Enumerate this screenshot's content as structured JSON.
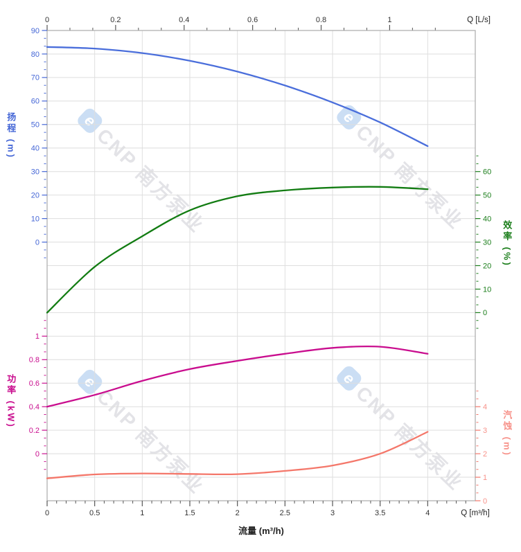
{
  "watermarks": {
    "text": "CNP 南方泵业",
    "logo_glyph": "e"
  },
  "chart_data": {
    "type": "line",
    "description": "pump performance curves",
    "x_label_bottom": "流量 (m³/h)",
    "x_m3h": [
      0,
      0.5,
      1,
      1.5,
      2,
      2.5,
      3,
      3.5,
      4
    ],
    "series": [
      {
        "name": "扬程",
        "unit": "m",
        "axis": "head",
        "color": "#4a6edb",
        "values": [
          83,
          82.3,
          80.4,
          77.1,
          72.5,
          66.6,
          59.4,
          50.9,
          40.8
        ]
      },
      {
        "name": "效率",
        "unit": "%",
        "axis": "efficiency",
        "color": "#127c12",
        "values": [
          0,
          19.5,
          32.5,
          43.5,
          49.5,
          52,
          53.2,
          53.5,
          52.5
        ]
      },
      {
        "name": "功率",
        "unit": "kW",
        "axis": "power",
        "color": "#c90d8e",
        "values": [
          0.4,
          0.5,
          0.62,
          0.72,
          0.79,
          0.85,
          0.9,
          0.91,
          0.85
        ]
      },
      {
        "name": "汽蚀",
        "unit": "m",
        "axis": "npsh",
        "color": "#f4776a",
        "values": [
          0.95,
          1.12,
          1.16,
          1.14,
          1.13,
          1.27,
          1.5,
          2,
          2.93
        ]
      }
    ],
    "axes": {
      "top": {
        "label": "Q [L/s]",
        "tick_labels": [
          "0",
          "0.2",
          "0.4",
          "0.6",
          "0.8",
          "1"
        ],
        "conversion": "1 L/s = 3.6 m³/h"
      },
      "bottom": {
        "label": "Q [m³/h]",
        "title": "流量 (m³/h)",
        "tick_labels": [
          "0",
          "0.5",
          "1",
          "1.5",
          "2",
          "2.5",
          "3",
          "3.5",
          "4"
        ],
        "range_m3h": [
          0,
          4.5
        ]
      },
      "head": {
        "title": "扬程 (m)",
        "color": "#4466d6",
        "tick_labels": [
          "90",
          "80",
          "70",
          "60",
          "50",
          "40",
          "30",
          "20",
          "10",
          "0"
        ]
      },
      "efficiency": {
        "title": "效率 (%)",
        "color": "#1b7e1b",
        "tick_labels": [
          "60",
          "50",
          "40",
          "30",
          "20",
          "10",
          "0"
        ]
      },
      "power": {
        "title": "功率 (kW)",
        "color": "#c90d8e",
        "tick_labels": [
          "1",
          "0.8",
          "0.6",
          "0.4",
          "0.2",
          "0"
        ]
      },
      "npsh": {
        "title": "汽蚀 (m)",
        "color": "#f4776a",
        "label_color": "#f7928a",
        "tick_labels": [
          "4",
          "3",
          "2",
          "1",
          "0"
        ]
      }
    },
    "grid": true,
    "legend": "none"
  }
}
